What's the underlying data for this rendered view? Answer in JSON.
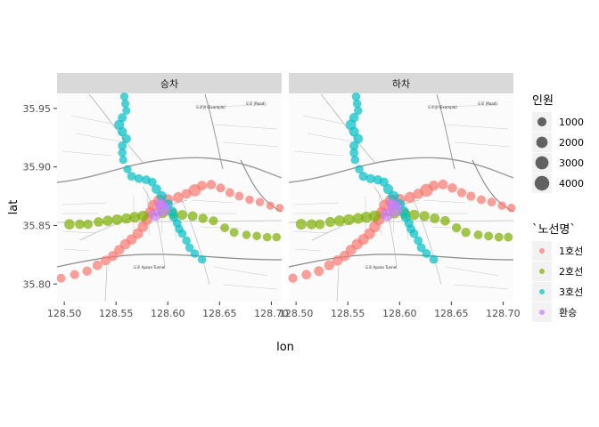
{
  "panels": [
    {
      "label": "승차"
    },
    {
      "label": "하차"
    }
  ],
  "axes": {
    "x_title": "lon",
    "y_title": "lat",
    "x_ticks": [
      {
        "value": 128.5,
        "label": "128.50"
      },
      {
        "value": 128.55,
        "label": "128.55"
      },
      {
        "value": 128.6,
        "label": "128.60"
      },
      {
        "value": 128.65,
        "label": "128.65"
      },
      {
        "value": 128.7,
        "label": "128.70"
      }
    ],
    "y_ticks": [
      {
        "value": 35.8,
        "label": "35.80"
      },
      {
        "value": 35.85,
        "label": "35.85"
      },
      {
        "value": 35.9,
        "label": "35.90"
      },
      {
        "value": 35.95,
        "label": "35.95"
      }
    ],
    "xlim": [
      128.493,
      128.71
    ],
    "ylim": [
      35.785,
      35.962
    ]
  },
  "legend_size": {
    "title": "인원",
    "items": [
      {
        "value": 1000,
        "label": "1000"
      },
      {
        "value": 2000,
        "label": "2000"
      },
      {
        "value": 3000,
        "label": "3000"
      },
      {
        "value": 4000,
        "label": "4000"
      }
    ]
  },
  "legend_color": {
    "title": "`노선명`",
    "items": [
      {
        "key": "line1",
        "label": "1호선",
        "color": "#F8766D"
      },
      {
        "key": "line2",
        "label": "2호선",
        "color": "#7CAE00"
      },
      {
        "key": "line3",
        "label": "3호선",
        "color": "#00BFC4"
      },
      {
        "key": "transfer",
        "label": "환승",
        "color": "#C77CFF"
      }
    ]
  },
  "basemap_labels": [
    "Daegu"
  ],
  "chart_data": {
    "type": "scatter",
    "facets": [
      "승차",
      "하차"
    ],
    "series": [
      {
        "name": "1호선",
        "color": "#F8766D",
        "points": [
          [
            128.497,
            35.805,
            900
          ],
          [
            128.51,
            35.808,
            1000
          ],
          [
            128.522,
            35.811,
            1100
          ],
          [
            128.532,
            35.816,
            1200
          ],
          [
            128.54,
            35.82,
            1300
          ],
          [
            128.547,
            35.824,
            1300
          ],
          [
            128.553,
            35.829,
            1400
          ],
          [
            128.559,
            35.834,
            1500
          ],
          [
            128.565,
            35.838,
            1500
          ],
          [
            128.571,
            35.843,
            1600
          ],
          [
            128.576,
            35.849,
            1600
          ],
          [
            128.58,
            35.855,
            1700
          ],
          [
            128.583,
            35.861,
            1800
          ],
          [
            128.586,
            35.867,
            2000
          ],
          [
            128.592,
            35.871,
            2600
          ],
          [
            128.6,
            35.872,
            1900
          ],
          [
            128.61,
            35.874,
            1500
          ],
          [
            128.618,
            35.877,
            1300
          ],
          [
            128.626,
            35.88,
            2500
          ],
          [
            128.633,
            35.884,
            1200
          ],
          [
            128.642,
            35.885,
            1100
          ],
          [
            128.651,
            35.882,
            1000
          ],
          [
            128.66,
            35.878,
            900
          ],
          [
            128.669,
            35.875,
            900
          ],
          [
            128.679,
            35.872,
            800
          ],
          [
            128.689,
            35.87,
            800
          ],
          [
            128.699,
            35.867,
            700
          ],
          [
            128.708,
            35.865,
            700
          ]
        ]
      },
      {
        "name": "2호선",
        "color": "#7CAE00",
        "points": [
          [
            128.505,
            35.851,
            1500
          ],
          [
            128.515,
            35.851,
            1200
          ],
          [
            128.523,
            35.851,
            1100
          ],
          [
            128.533,
            35.853,
            1200
          ],
          [
            128.542,
            35.854,
            1500
          ],
          [
            128.551,
            35.855,
            1600
          ],
          [
            128.56,
            35.856,
            1500
          ],
          [
            128.568,
            35.857,
            1600
          ],
          [
            128.576,
            35.858,
            1700
          ],
          [
            128.595,
            35.861,
            1800
          ],
          [
            128.605,
            35.86,
            1500
          ],
          [
            128.614,
            35.859,
            1300
          ],
          [
            128.624,
            35.858,
            1200
          ],
          [
            128.634,
            35.856,
            1100
          ],
          [
            128.644,
            35.854,
            1000
          ],
          [
            128.655,
            35.848,
            900
          ],
          [
            128.664,
            35.844,
            900
          ],
          [
            128.676,
            35.842,
            800
          ],
          [
            128.686,
            35.841,
            800
          ],
          [
            128.696,
            35.84,
            800
          ],
          [
            128.705,
            35.84,
            800
          ]
        ]
      },
      {
        "name": "3호선",
        "color": "#00BFC4",
        "points": [
          [
            128.558,
            35.96,
            700
          ],
          [
            128.559,
            35.954,
            700
          ],
          [
            128.56,
            35.948,
            700
          ],
          [
            128.556,
            35.942,
            1000
          ],
          [
            128.553,
            35.936,
            1300
          ],
          [
            128.556,
            35.93,
            1100
          ],
          [
            128.56,
            35.924,
            1000
          ],
          [
            128.556,
            35.918,
            900
          ],
          [
            128.556,
            35.912,
            800
          ],
          [
            128.557,
            35.906,
            700
          ],
          [
            128.561,
            35.898,
            700
          ],
          [
            128.565,
            35.892,
            900
          ],
          [
            128.572,
            35.89,
            900
          ],
          [
            128.579,
            35.889,
            900
          ],
          [
            128.585,
            35.887,
            900
          ],
          [
            128.589,
            35.881,
            1200
          ],
          [
            128.594,
            35.875,
            1400
          ],
          [
            128.6,
            35.868,
            1300
          ],
          [
            128.604,
            35.862,
            1200
          ],
          [
            128.606,
            35.857,
            1000
          ],
          [
            128.609,
            35.852,
            900
          ],
          [
            128.611,
            35.847,
            800
          ],
          [
            128.614,
            35.843,
            800
          ],
          [
            128.618,
            35.837,
            800
          ],
          [
            128.621,
            35.831,
            800
          ],
          [
            128.626,
            35.826,
            800
          ],
          [
            128.633,
            35.821,
            800
          ]
        ]
      },
      {
        "name": "환승",
        "color": "#C77CFF",
        "points": [
          [
            128.588,
            35.859,
            2200
          ],
          [
            128.596,
            35.864,
            3200
          ],
          [
            128.593,
            35.868,
            1800
          ]
        ]
      }
    ]
  }
}
